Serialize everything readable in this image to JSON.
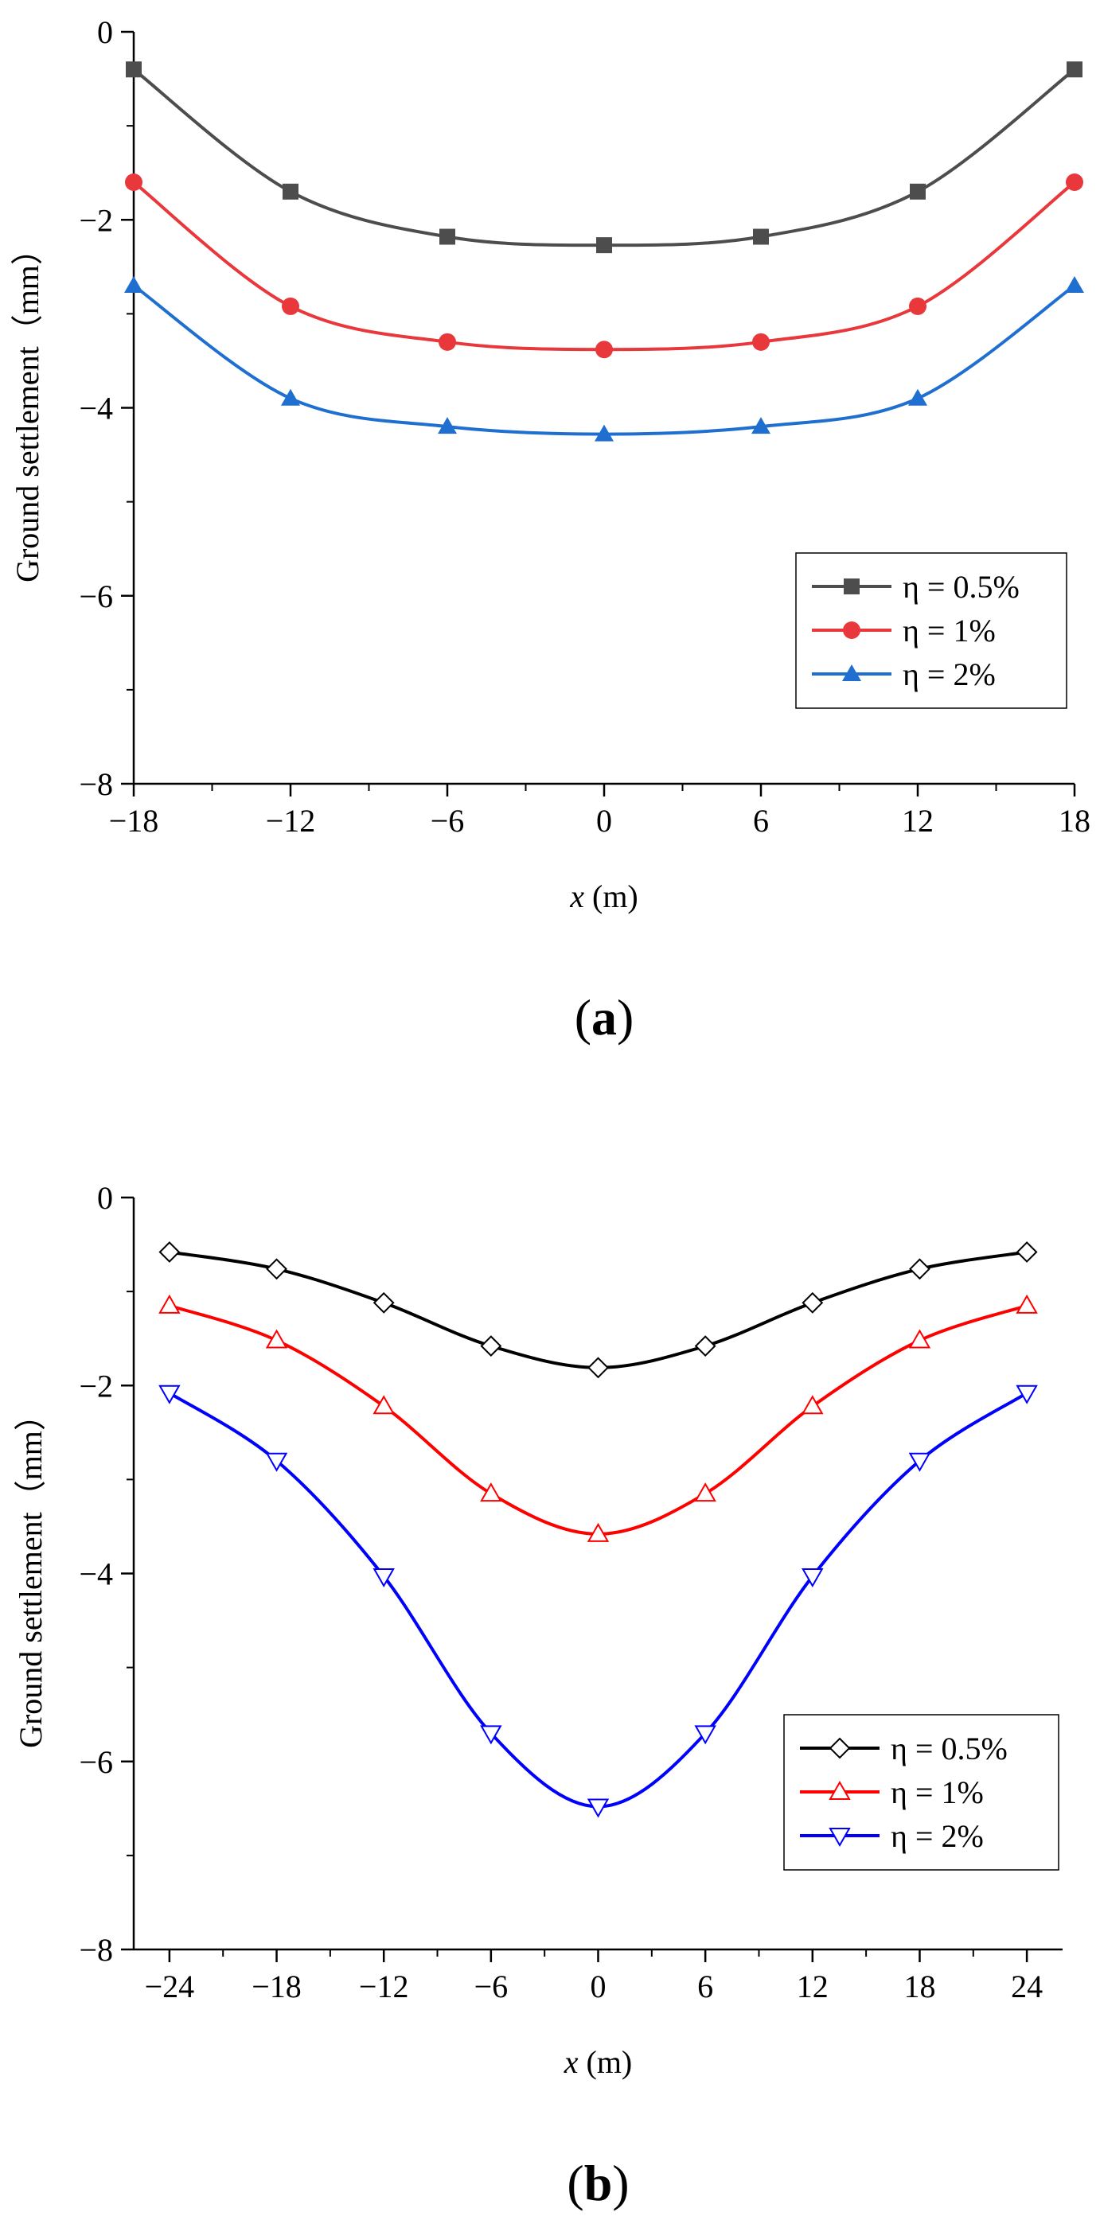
{
  "chart_data": [
    {
      "id": "a",
      "type": "line",
      "panel_label": "(a)",
      "panel_label_letter": "a",
      "xlabel": "x (m)",
      "xlabel_var": "x",
      "xlabel_unit": "(m)",
      "ylabel": "Ground settlement（mm）",
      "xlim": [
        -18,
        18
      ],
      "ylim": [
        -8,
        0
      ],
      "x_ticks": [
        -18,
        -12,
        -6,
        0,
        6,
        12,
        18
      ],
      "x_tick_labels": [
        "−18",
        "−12",
        "−6",
        "0",
        "6",
        "12",
        "18"
      ],
      "y_ticks": [
        0,
        -2,
        -4,
        -6,
        -8
      ],
      "y_tick_labels": [
        "0",
        "−2",
        "−4",
        "−6",
        "−8"
      ],
      "legend_position": "lower-right",
      "x": [
        -18,
        -12,
        -6,
        0,
        6,
        12,
        18
      ],
      "series": [
        {
          "name": "η = 0.5%",
          "color": "#4d4d4d",
          "marker": "square-filled",
          "values": [
            -0.4,
            -1.7,
            -2.18,
            -2.27,
            -2.18,
            -1.7,
            -0.4
          ]
        },
        {
          "name": "η = 1%",
          "color": "#e8383b",
          "marker": "circle-filled",
          "values": [
            -1.6,
            -2.92,
            -3.3,
            -3.38,
            -3.3,
            -2.92,
            -1.6
          ]
        },
        {
          "name": "η = 2%",
          "color": "#1f6fd1",
          "marker": "triangle-up-filled",
          "values": [
            -2.7,
            -3.9,
            -4.2,
            -4.28,
            -4.2,
            -3.9,
            -2.7
          ]
        }
      ]
    },
    {
      "id": "b",
      "type": "line",
      "panel_label": "(b)",
      "panel_label_letter": "b",
      "xlabel": "x (m)",
      "xlabel_var": "x",
      "xlabel_unit": "(m)",
      "ylabel": "Ground settlement（mm）",
      "xlim": [
        -26,
        26
      ],
      "ylim": [
        -8,
        0
      ],
      "x_ticks": [
        -24,
        -18,
        -12,
        -6,
        0,
        6,
        12,
        18,
        24
      ],
      "x_tick_labels": [
        "−24",
        "−18",
        "−12",
        "−6",
        "0",
        "6",
        "12",
        "18",
        "24"
      ],
      "y_ticks": [
        0,
        -2,
        -4,
        -6,
        -8
      ],
      "y_tick_labels": [
        "0",
        "−2",
        "−4",
        "−6",
        "−8"
      ],
      "legend_position": "lower-right",
      "x": [
        -24,
        -18,
        -12,
        -6,
        0,
        6,
        12,
        18,
        24
      ],
      "series": [
        {
          "name": "η = 0.5%",
          "color": "#000000",
          "marker": "diamond-open",
          "values": [
            -0.58,
            -0.76,
            -1.12,
            -1.58,
            -1.81,
            -1.58,
            -1.12,
            -0.76,
            -0.58
          ]
        },
        {
          "name": "η = 1%",
          "color": "#ff0000",
          "marker": "triangle-up-open",
          "values": [
            -1.15,
            -1.52,
            -2.22,
            -3.15,
            -3.58,
            -3.15,
            -2.22,
            -1.52,
            -1.15
          ]
        },
        {
          "name": "η = 2%",
          "color": "#0000ff",
          "marker": "triangle-down-open",
          "values": [
            -2.08,
            -2.8,
            -4.03,
            -5.7,
            -6.48,
            -5.7,
            -4.03,
            -2.8,
            -2.08
          ]
        }
      ]
    }
  ]
}
